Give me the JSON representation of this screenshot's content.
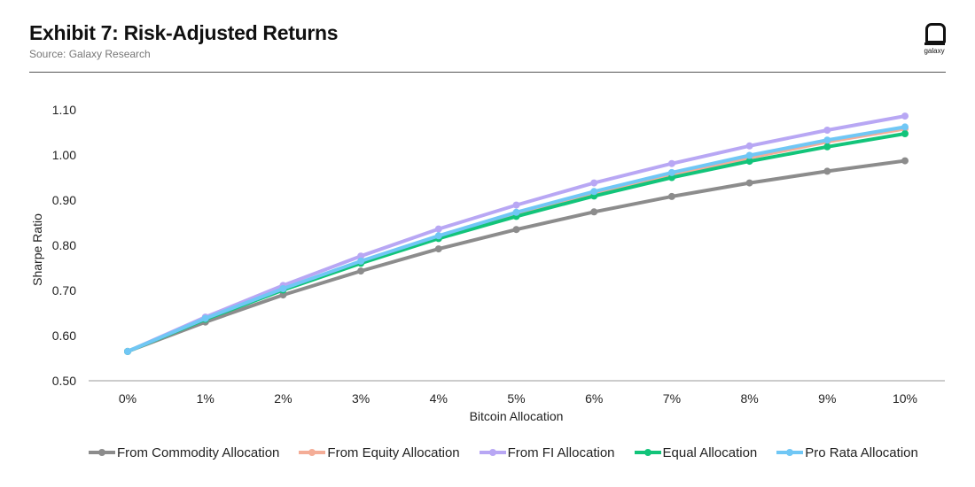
{
  "header": {
    "title": "Exhibit 7: Risk-Adjusted Returns",
    "source": "Source: Galaxy Research"
  },
  "logo": {
    "text": "galaxy",
    "icon": "galaxy-logo-icon"
  },
  "chart_data": {
    "type": "line",
    "title": "Exhibit 7: Risk-Adjusted Returns",
    "subtitle": "Source: Galaxy Research",
    "xlabel": "Bitcoin Allocation",
    "ylabel": "Sharpe Ratio",
    "categories": [
      "0%",
      "1%",
      "2%",
      "3%",
      "4%",
      "5%",
      "6%",
      "7%",
      "8%",
      "9%",
      "10%"
    ],
    "ylim": [
      0.5,
      1.1
    ],
    "yticks": [
      "0.50",
      "0.60",
      "0.70",
      "0.80",
      "0.90",
      "1.00",
      "1.10"
    ],
    "ytick_values": [
      0.5,
      0.6,
      0.7,
      0.8,
      0.9,
      1.0,
      1.1
    ],
    "grid": false,
    "legend_position": "bottom",
    "series": [
      {
        "name": "From Commodity Allocation",
        "color": "#8c8c8c",
        "values": [
          0.565,
          0.63,
          0.69,
          0.743,
          0.792,
          0.835,
          0.874,
          0.908,
          0.938,
          0.964,
          0.987
        ]
      },
      {
        "name": "From Equity Allocation",
        "color": "#f4ad97",
        "values": [
          0.565,
          0.637,
          0.702,
          0.761,
          0.817,
          0.867,
          0.913,
          0.955,
          0.994,
          1.029,
          1.058
        ]
      },
      {
        "name": "From FI Allocation",
        "color": "#b8a7f4",
        "values": [
          0.565,
          0.641,
          0.711,
          0.776,
          0.836,
          0.889,
          0.938,
          0.981,
          1.02,
          1.055,
          1.086
        ]
      },
      {
        "name": "Equal Allocation",
        "color": "#12c47a",
        "values": [
          0.565,
          0.636,
          0.701,
          0.76,
          0.815,
          0.864,
          0.909,
          0.95,
          0.986,
          1.018,
          1.047
        ]
      },
      {
        "name": "Pro Rata Allocation",
        "color": "#70c7f5",
        "values": [
          0.565,
          0.638,
          0.704,
          0.765,
          0.821,
          0.873,
          0.919,
          0.961,
          0.999,
          1.033,
          1.062
        ]
      }
    ]
  }
}
